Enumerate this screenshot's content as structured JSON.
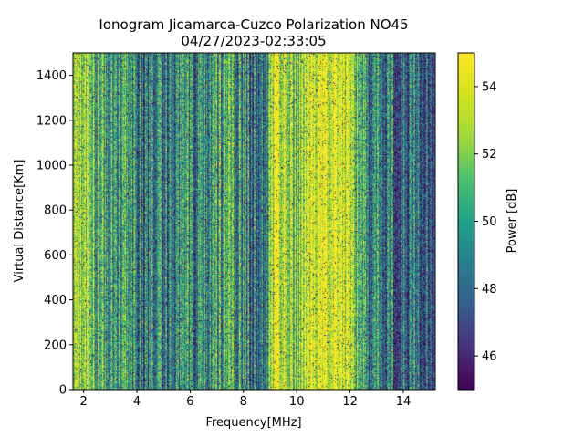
{
  "chart_data": {
    "type": "heatmap",
    "title": "Ionogram Jicamarca-Cuzco Polarization NO45",
    "subtitle": "04/27/2023-02:33:05",
    "xlabel": "Frequency[MHz]",
    "ylabel": "Virtual Distance[Km]",
    "xlim": [
      1.6,
      15.2
    ],
    "ylim": [
      0,
      1500
    ],
    "xticks": [
      2,
      4,
      6,
      8,
      10,
      12,
      14
    ],
    "yticks": [
      0,
      200,
      400,
      600,
      800,
      1000,
      1200,
      1400
    ],
    "colorbar": {
      "label": "Power [dB]",
      "range": [
        45,
        55
      ],
      "ticks": [
        46,
        48,
        50,
        52,
        54
      ],
      "colormap": "viridis"
    },
    "column_profile": {
      "frequencies_mhz": [
        1.6,
        2.3,
        3.0,
        3.5,
        4.2,
        5.0,
        6.0,
        7.0,
        8.0,
        8.6,
        9.0,
        9.2,
        9.6,
        10.0,
        10.4,
        11.0,
        11.6,
        12.0,
        12.6,
        13.0,
        13.6,
        14.0,
        14.6,
        15.2
      ],
      "mean_power_db": [
        53.5,
        52.0,
        49.5,
        50.5,
        48.0,
        48.5,
        49.5,
        50.0,
        49.5,
        47.5,
        52.0,
        55.0,
        53.5,
        52.0,
        55.0,
        54.5,
        55.0,
        53.0,
        50.0,
        49.5,
        49.0,
        47.5,
        48.5,
        47.0
      ]
    }
  }
}
